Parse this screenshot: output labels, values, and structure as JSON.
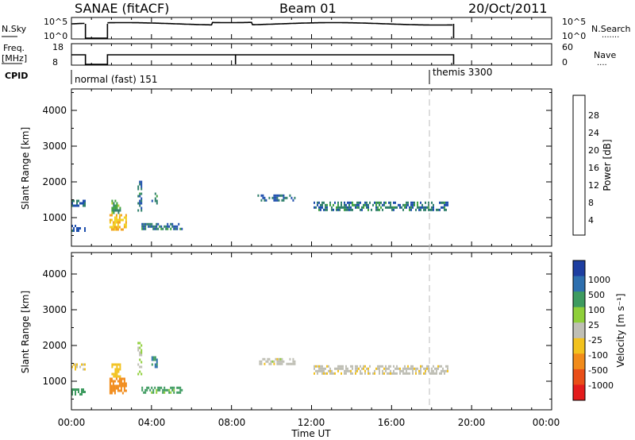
{
  "header": {
    "title": "SANAE (fitACF)",
    "beam": "Beam 01",
    "date": "20/Oct/2011"
  },
  "nsky_panel": {
    "left_label": "N.Sky",
    "right_label": "N.Search",
    "right_style_label": "·······",
    "left_ticks": [
      "10^5",
      "10^0"
    ],
    "right_ticks": [
      "10^5",
      "10^0"
    ]
  },
  "freq_panel": {
    "left_label_line1": "Freq.",
    "left_label_line2": "[MHz]",
    "right_label": "Nave",
    "right_style_label": "····",
    "left_ticks": [
      "18",
      "8"
    ],
    "right_ticks": [
      "60",
      "0"
    ]
  },
  "cpid": {
    "label": "CPID",
    "segments": [
      {
        "text": "normal (fast) 151",
        "start": 1.0
      },
      {
        "text": "themis 3300",
        "start": 18.0
      }
    ]
  },
  "time_axis": {
    "label": "Time UT",
    "ticks": [
      "00:00",
      "04:00",
      "08:00",
      "12:00",
      "16:00",
      "20:00",
      "00:00"
    ]
  },
  "range_axis": {
    "label": "Slant Range [km]",
    "ticks": [
      "4000",
      "3000",
      "2000",
      "1000"
    ]
  },
  "power_colorbar": {
    "label": "Power [dB]",
    "ticks": [
      "28",
      "24",
      "20",
      "16",
      "12",
      "8",
      "4"
    ],
    "colors": [
      "#1a1aff",
      "#1f4fae",
      "#2e7f6a",
      "#3fa23f",
      "#b6d22a",
      "#f2d020",
      "#f2a11a",
      "#ef6a1a",
      "#e52e18",
      "#d81c1c"
    ]
  },
  "velocity_colorbar": {
    "label": "Velocity [m s⁻¹]",
    "ticks": [
      "1000",
      "500",
      "100",
      "25",
      "-25",
      "-100",
      "-500",
      "-1000"
    ],
    "colors": [
      "#1e3ea0",
      "#2e6fae",
      "#3e9b60",
      "#8fcf3a",
      "#bfbfb5",
      "#f2c21e",
      "#f18b1a",
      "#e94e18",
      "#e31c1c"
    ]
  },
  "chart_data": {
    "type": "heatmap",
    "x_units": "hours UT",
    "xlim": [
      0,
      24
    ],
    "ylim": [
      200,
      4600
    ],
    "data_gaps": [
      [
        0.7,
        1.8
      ],
      [
        19.1,
        24.0
      ]
    ],
    "cpid_change_hours": 18.0,
    "echo_regions": [
      {
        "x_start": 0.0,
        "x_end": 0.7,
        "range_start": 1300,
        "range_end": 1500,
        "power": 6,
        "velocity": -20
      },
      {
        "x_start": 0.0,
        "x_end": 0.7,
        "range_start": 650,
        "range_end": 800,
        "power": 6,
        "velocity": 150
      },
      {
        "x_start": 1.9,
        "x_end": 2.7,
        "range_start": 650,
        "range_end": 1100,
        "power": 18,
        "velocity": -300
      },
      {
        "x_start": 2.0,
        "x_end": 2.4,
        "range_start": 1100,
        "range_end": 1500,
        "power": 10,
        "velocity": -60
      },
      {
        "x_start": 3.3,
        "x_end": 3.5,
        "range_start": 1200,
        "range_end": 2100,
        "power": 7,
        "velocity": 40
      },
      {
        "x_start": 4.0,
        "x_end": 4.3,
        "range_start": 1400,
        "range_end": 1700,
        "power": 8,
        "velocity": 500
      },
      {
        "x_start": 3.5,
        "x_end": 5.5,
        "range_start": 700,
        "range_end": 850,
        "power": 7,
        "velocity": 120
      },
      {
        "x_start": 9.3,
        "x_end": 11.2,
        "range_start": 1450,
        "range_end": 1650,
        "power": 6,
        "velocity": 0
      },
      {
        "x_start": 12.1,
        "x_end": 18.8,
        "range_start": 1200,
        "range_end": 1450,
        "power": 7,
        "velocity": -5
      }
    ]
  }
}
